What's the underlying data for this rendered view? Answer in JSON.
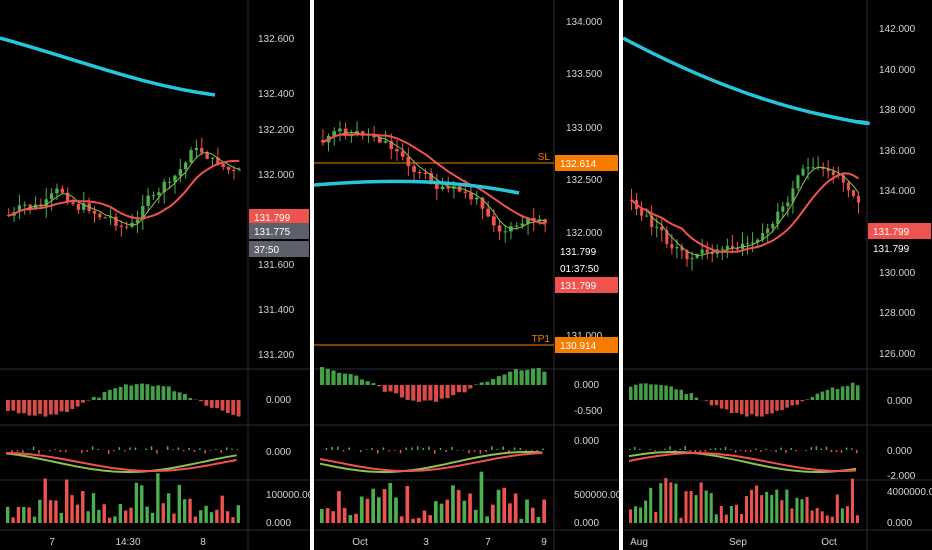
{
  "panels": [
    {
      "id": "left",
      "price_axis": [
        "132.600",
        "132.400",
        "132.200",
        "132.000",
        "131.800",
        "131.600",
        "131.400",
        "131.200"
      ],
      "price_badges": [
        {
          "text": "131.799",
          "color": "#ef5350"
        },
        {
          "text": "131.775",
          "color": "#5d606b"
        },
        {
          "text": "37:50",
          "color": "#5d606b"
        }
      ],
      "osc1_axis": [
        "0.000"
      ],
      "osc2_axis": [
        "0.000"
      ],
      "vol_axis": [
        "100000.000",
        "0.000"
      ],
      "time_axis": [
        "7",
        "14:30",
        "8"
      ]
    },
    {
      "id": "middle",
      "price_axis": [
        "134.000",
        "133.500",
        "133.000",
        "132.500",
        "132.000",
        "131.000"
      ],
      "price_badges": [
        {
          "text": "132.614",
          "color": "#f57c00",
          "tag": "SL"
        },
        {
          "text": "131.799",
          "color": "#000000"
        },
        {
          "text": "01:37:50",
          "color": "#000000"
        },
        {
          "text": "131.799",
          "color": "#ef5350"
        },
        {
          "text": "130.914",
          "color": "#f57c00",
          "tag": "TP1"
        }
      ],
      "osc1_axis": [
        "0.000",
        "-0.500"
      ],
      "osc2_axis": [
        "0.000"
      ],
      "vol_axis": [
        "500000.000",
        "0.000"
      ],
      "time_axis": [
        "Oct",
        "3",
        "7",
        "9"
      ]
    },
    {
      "id": "right",
      "price_axis": [
        "142.000",
        "140.000",
        "138.000",
        "136.000",
        "134.000",
        "132.000",
        "130.000",
        "128.000",
        "126.000"
      ],
      "price_badges": [
        {
          "text": "131.799",
          "color": "#ef5350"
        },
        {
          "text": "131.799",
          "color": "#000000"
        }
      ],
      "osc1_axis": [
        "0.000"
      ],
      "osc2_axis": [
        "0.000",
        "-2.000"
      ],
      "vol_axis": [
        "4000000.000",
        "0.000"
      ],
      "time_axis": [
        "Aug",
        "Sep",
        "Oct"
      ]
    }
  ],
  "colors": {
    "bull": "#4caf50",
    "bear": "#ef5350",
    "ma_long": "#26c6da",
    "ma_mid": "#ef5350",
    "ma_fast": "#8bc34a",
    "level": "#f57c00",
    "axis_text": "#d1d4dc"
  }
}
